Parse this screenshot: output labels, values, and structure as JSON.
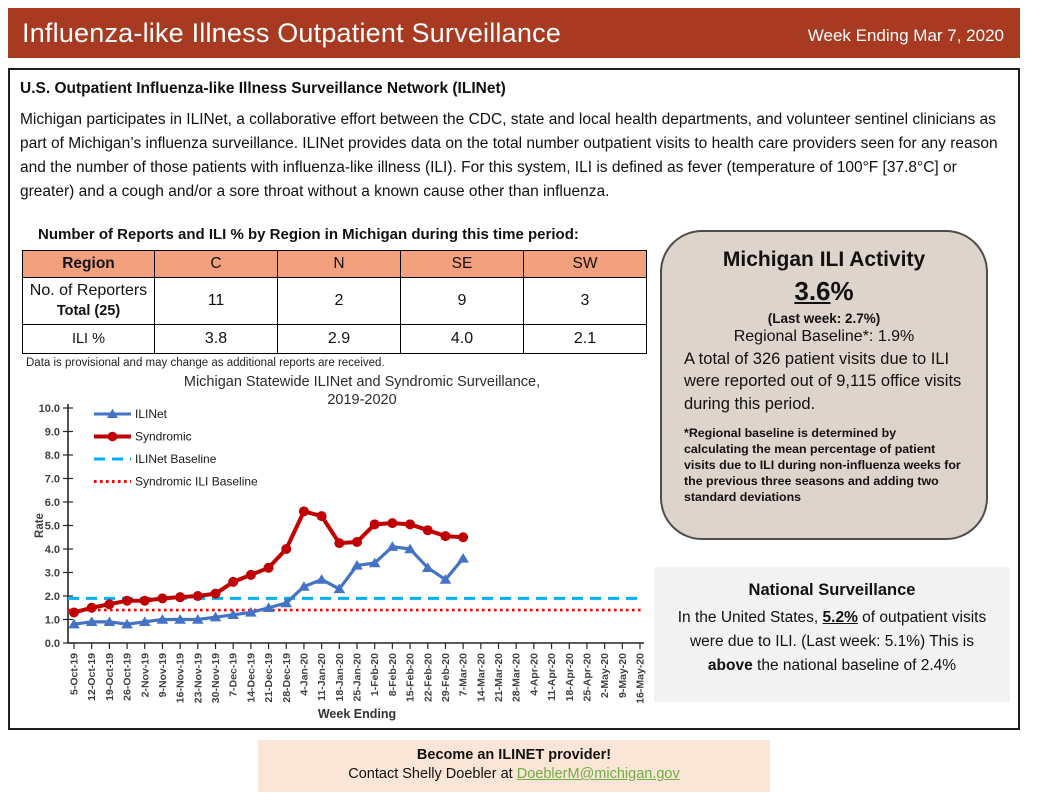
{
  "header": {
    "title": "Influenza-like Illness Outpatient Surveillance",
    "week_ending": "Week Ending Mar 7, 2020",
    "bg_color": "#A83A22"
  },
  "intro": {
    "heading": "U.S. Outpatient Influenza-like Illness Surveillance Network (ILINet)",
    "body": "Michigan participates in ILINet, a collaborative effort between the CDC, state and local health departments, and volunteer sentinel clinicians as part of Michigan’s influenza surveillance. ILINet provides data on the total number outpatient visits to health care providers seen for any reason and the number of those patients with influenza-like illness (ILI). For this system, ILI is defined as fever (temperature of 100°F [37.8°C] or greater) and a cough and/or a sore throat without a known cause other than influenza."
  },
  "region_table": {
    "title": "Number of Reports and ILI % by Region in Michigan during this time period:",
    "header_bg": "#F2A07E",
    "columns": [
      "Region",
      "C",
      "N",
      "SE",
      "SW"
    ],
    "reporters_row": {
      "label_line1": "No. of Reporters",
      "label_line2": "Total (25)",
      "values": [
        "11",
        "2",
        "9",
        "3"
      ]
    },
    "ili_row": {
      "label": "ILI %",
      "values": [
        "3.8",
        "2.9",
        "4.0",
        "2.1"
      ]
    },
    "footnote": "Data is provisional and may change as additional reports are received."
  },
  "chart_data": {
    "type": "line",
    "title_line1": "Michigan Statewide ILINet and Syndromic Surveillance,",
    "title_line2": "2019-2020",
    "xlabel": "Week Ending",
    "ylabel": "Rate",
    "ylim": [
      0,
      10
    ],
    "ytick_step": 1.0,
    "grid": false,
    "legend_position": "top-left",
    "categories": [
      "5-Oct-19",
      "12-Oct-19",
      "19-Oct-19",
      "26-Oct-19",
      "2-Nov-19",
      "9-Nov-19",
      "16-Nov-19",
      "23-Nov-19",
      "30-Nov-19",
      "7-Dec-19",
      "14-Dec-19",
      "21-Dec-19",
      "28-Dec-19",
      "4-Jan-20",
      "11-Jan-20",
      "18-Jan-20",
      "25-Jan-20",
      "1-Feb-20",
      "8-Feb-20",
      "15-Feb-20",
      "22-Feb-20",
      "29-Feb-20",
      "7-Mar-20",
      "14-Mar-20",
      "21-Mar-20",
      "28-Mar-20",
      "4-Apr-20",
      "11-Apr-20",
      "18-Apr-20",
      "25-Apr-20",
      "2-May-20",
      "9-May-20",
      "16-May-20"
    ],
    "series": [
      {
        "name": "ILINet",
        "color": "#4472C4",
        "marker": "triangle",
        "style": "solid",
        "values": [
          0.8,
          0.9,
          0.9,
          0.8,
          0.9,
          1.0,
          1.0,
          1.0,
          1.1,
          1.2,
          1.3,
          1.5,
          1.7,
          2.4,
          2.7,
          2.3,
          3.3,
          3.4,
          4.1,
          4.0,
          3.2,
          2.7,
          3.6
        ]
      },
      {
        "name": "Syndromic",
        "color": "#C00000",
        "marker": "circle",
        "style": "solid",
        "values": [
          1.3,
          1.5,
          1.65,
          1.8,
          1.8,
          1.9,
          1.95,
          2.0,
          2.1,
          2.6,
          2.9,
          3.2,
          4.0,
          5.6,
          5.4,
          4.25,
          4.3,
          5.05,
          5.1,
          5.05,
          4.8,
          4.55,
          4.5
        ]
      },
      {
        "name": "ILINet Baseline",
        "color": "#00B0F0",
        "marker": "none",
        "style": "dashed",
        "baseline_value": 1.9
      },
      {
        "name": "Syndromic ILI Baseline",
        "color": "#FF0000",
        "marker": "none",
        "style": "dotted",
        "baseline_value": 1.4
      }
    ]
  },
  "activity_box": {
    "bg_color": "#DDD4CB",
    "title": "Michigan ILI Activity",
    "value": "3.6",
    "value_suffix": "%",
    "last_week": "(Last week: 2.7%)",
    "regional_baseline": "Regional Baseline*: 1.9%",
    "body": "A total of 326 patient visits due to ILI were reported out of 9,115 office visits during this period.",
    "footnote": "*Regional baseline is determined by calculating the mean percentage of patient visits due to ILI during non-influenza weeks for the previous three seasons and adding two standard deviations"
  },
  "national_box": {
    "bg_color": "#F2F2F2",
    "title": "National Surveillance",
    "text_part1": "In the United States, ",
    "highlight_pct": "5.2%",
    "text_part2": " of outpatient visits were due to ILI. (Last week: 5.1%) This is ",
    "highlight_word": "above",
    "text_part3": " the national baseline of 2.4%"
  },
  "contact_box": {
    "bg_color": "#FBE5D6",
    "line1": "Become an ILINET provider!",
    "line2_prefix": "Contact Shelly Doebler at ",
    "email": "DoeblerM@michigan.gov",
    "email_color": "#70AD47"
  }
}
